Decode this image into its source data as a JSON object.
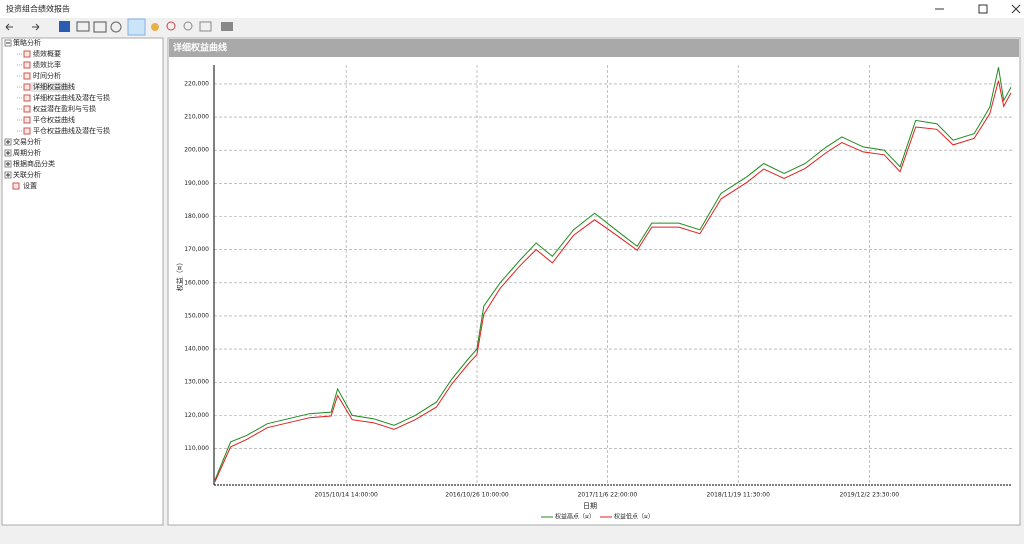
{
  "window": {
    "title": "投资组合绩效报告"
  },
  "tree": [
    {
      "label": "策略分析",
      "children": [
        {
          "label": "绩效概要"
        },
        {
          "label": "绩效比率"
        },
        {
          "label": "时间分析"
        },
        {
          "label": "详细权益曲线"
        },
        {
          "label": "详细权益曲线及潜在亏损"
        },
        {
          "label": "权益潜在盈利与亏损"
        },
        {
          "label": "平仓权益曲线"
        },
        {
          "label": "平仓权益曲线及潜在亏损"
        }
      ]
    },
    {
      "label": "交易分析"
    },
    {
      "label": "周期分析"
    },
    {
      "label": "根据商品分类"
    },
    {
      "label": "关联分析"
    },
    {
      "label": "设置"
    }
  ],
  "panel": {
    "title": "详细权益曲线"
  },
  "chart_data": {
    "type": "line",
    "x_label": "日期",
    "y_label": "权益（¤）",
    "x": [
      "2014/10/01",
      "2014/11/15",
      "2015/01/01",
      "2015/03/01",
      "2015/05/01",
      "2015/07/01",
      "2015/09/01",
      "2015/09/20",
      "2015/11/01",
      "2016/01/01",
      "2016/03/01",
      "2016/05/01",
      "2016/07/01",
      "2016/08/15",
      "2016/10/01",
      "2016/10/26",
      "2016/11/15",
      "2017/01/01",
      "2017/03/01",
      "2017/04/15",
      "2017/06/01",
      "2017/08/01",
      "2017/10/01",
      "2017/12/01",
      "2018/02/01",
      "2018/03/15",
      "2018/06/01",
      "2018/08/01",
      "2018/10/01",
      "2018/12/15",
      "2019/02/01",
      "2019/04/01",
      "2019/06/01",
      "2019/08/01",
      "2019/09/15",
      "2019/11/15",
      "2020/01/15",
      "2020/03/01",
      "2020/04/15",
      "2020/06/15",
      "2020/08/01",
      "2020/10/01",
      "2020/11/15",
      "2020/12/10",
      "2020/12/25",
      "2021/01/15"
    ],
    "series": [
      {
        "name": "权益高点（¤）",
        "color": "#1e8c1e",
        "values": [
          100500,
          112000,
          114000,
          117500,
          119000,
          120500,
          121000,
          128000,
          120000,
          119000,
          117000,
          120000,
          124000,
          131000,
          137000,
          140000,
          153000,
          160000,
          167000,
          172000,
          168000,
          176000,
          181000,
          176000,
          171000,
          178000,
          178000,
          176000,
          187000,
          192000,
          196000,
          193000,
          196000,
          201000,
          204000,
          201000,
          200000,
          195000,
          209000,
          208000,
          203000,
          205000,
          213000,
          225000,
          215000,
          219000
        ]
      },
      {
        "name": "权益低点（¤）",
        "color": "#e02020",
        "values": [
          100000,
          110500,
          112800,
          116300,
          117800,
          119300,
          119800,
          126000,
          118700,
          117800,
          115800,
          118700,
          122500,
          129500,
          135500,
          138300,
          150500,
          158300,
          165300,
          170000,
          166000,
          174300,
          179000,
          174500,
          169800,
          176800,
          176800,
          174800,
          185300,
          190300,
          194300,
          191500,
          194500,
          199300,
          202300,
          199500,
          198600,
          193500,
          207000,
          206300,
          201600,
          203600,
          211000,
          221000,
          213200,
          217300
        ]
      }
    ],
    "xlim": [
      "2014/09/28 00:00:00",
      "2021/01/18 00:00:00"
    ],
    "xticks": [
      "2015/10/14 14:00:00",
      "2016/10/26 10:00:00",
      "2017/11/6 22:00:00",
      "2018/11/19 11:30:00",
      "2019/12/2 23:30:00"
    ],
    "ylim": [
      99000,
      225700
    ],
    "yticks": [
      {
        "value": 110000,
        "label": "110,000"
      },
      {
        "value": 120000,
        "label": "120,000"
      },
      {
        "value": 130000,
        "label": "130,000"
      },
      {
        "value": 140000,
        "label": "140,000"
      },
      {
        "value": 150000,
        "label": "150,000"
      },
      {
        "value": 160000,
        "label": "160,000"
      },
      {
        "value": 170000,
        "label": "170,000"
      },
      {
        "value": 180000,
        "label": "180,000"
      },
      {
        "value": 190000,
        "label": "190,000"
      },
      {
        "value": 200000,
        "label": "200,000"
      },
      {
        "value": 210000,
        "label": "210,000"
      },
      {
        "value": 220000,
        "label": "220,000"
      }
    ],
    "grid": true
  }
}
